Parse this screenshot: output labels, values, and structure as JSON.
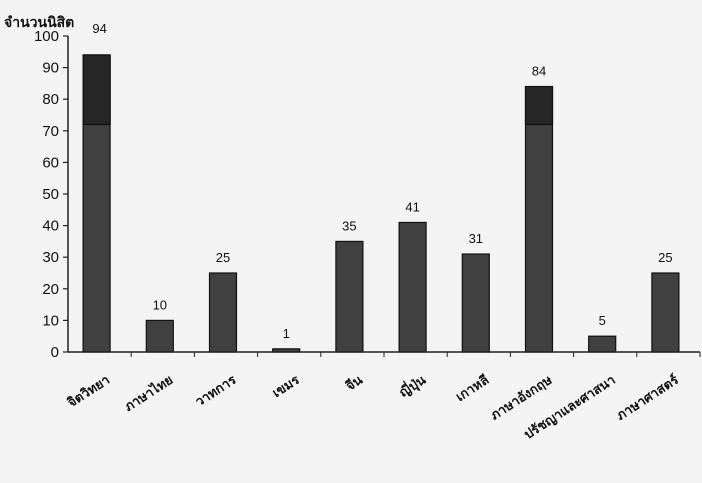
{
  "chart_data": {
    "type": "bar",
    "ylabel": "จำนวนนิสิต",
    "xlabel": "",
    "title": "",
    "ylim": [
      0,
      100
    ],
    "yticks": [
      0,
      10,
      20,
      30,
      40,
      50,
      60,
      70,
      80,
      90,
      100
    ],
    "categories": [
      "จิตวิทยา",
      "ภาษาไทย",
      "วาทการ",
      "เขมร",
      "จีน",
      "ญี่ปุ่น",
      "เกาหลี",
      "ภาษาอังกฤษ",
      "ปรัชญาและศาสนา",
      "ภาษาศาสตร์"
    ],
    "values": [
      94,
      10,
      25,
      1,
      35,
      41,
      31,
      84,
      5,
      25
    ],
    "grid": false,
    "colors": {
      "bar": "#404040",
      "bar_top": "#262626",
      "axis": "#222222",
      "background": "#f4f4f4"
    }
  }
}
